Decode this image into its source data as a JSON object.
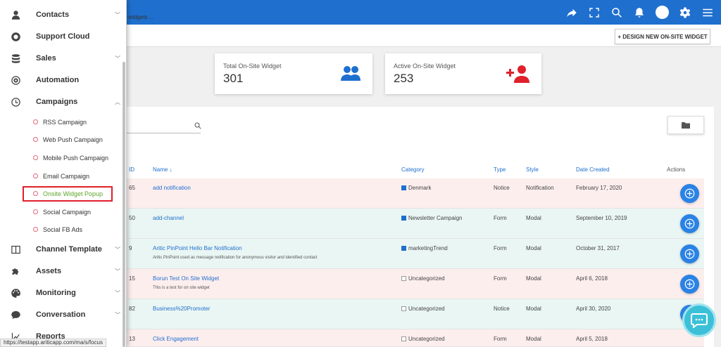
{
  "breadcrumb": "-widgets ...",
  "design_button": "+ DESIGN NEW ON-SITE WIDGET",
  "stats": [
    {
      "label": "Total On-Site Widget",
      "value": "301",
      "icon": "users-icon",
      "color": "#1f6fce"
    },
    {
      "label": "Active On-Site Widget",
      "value": "253",
      "icon": "user-plus-icon",
      "color": "#e0202a"
    }
  ],
  "table": {
    "headers": {
      "id": "ID",
      "name": "Name",
      "category": "Category",
      "type": "Type",
      "style": "Style",
      "date": "Date Created",
      "actions": "Actions"
    },
    "rows": [
      {
        "id": "65",
        "name": "add notification",
        "desc": "",
        "category": "Denmark",
        "cat_filled": true,
        "type": "Notice",
        "style": "Notification",
        "date": "February 17, 2020"
      },
      {
        "id": "50",
        "name": "add-channel",
        "desc": "",
        "category": "Newsletter Campaign",
        "cat_filled": true,
        "type": "Form",
        "style": "Modal",
        "date": "September 10, 2019"
      },
      {
        "id": "9",
        "name": "Aritic PinPoint Hello Bar Notification",
        "desc": "Aritic PinPoint used as message notification for anonymous visitor and identified contact",
        "category": "marketingTrend",
        "cat_filled": true,
        "type": "Form",
        "style": "Modal",
        "date": "October 31, 2017"
      },
      {
        "id": "15",
        "name": "Borun Test On Site Widget",
        "desc": "This is a test for on site widget",
        "category": "Uncategorized",
        "cat_filled": false,
        "type": "Form",
        "style": "Modal",
        "date": "April 6, 2018"
      },
      {
        "id": "82",
        "name": "Business%20Promoter",
        "desc": "",
        "category": "Uncategorized",
        "cat_filled": false,
        "type": "Notice",
        "style": "Modal",
        "date": "April 30, 2020"
      },
      {
        "id": "13",
        "name": "Click Engagement",
        "desc": "",
        "category": "Uncategorized",
        "cat_filled": false,
        "type": "Form",
        "style": "Modal",
        "date": "April 5, 2018"
      }
    ]
  },
  "sidebar": {
    "items": [
      {
        "label": "Contacts",
        "icon": "person-icon",
        "chevron": "chevron-down"
      },
      {
        "label": "Support Cloud",
        "icon": "lifebuoy-icon",
        "chevron": ""
      },
      {
        "label": "Sales",
        "icon": "database-icon",
        "chevron": "chevron-down"
      },
      {
        "label": "Automation",
        "icon": "target-icon",
        "chevron": ""
      },
      {
        "label": "Campaigns",
        "icon": "clock-icon",
        "chevron": "chevron-up"
      }
    ],
    "campaigns": [
      {
        "label": "RSS Campaign",
        "active": false
      },
      {
        "label": "Web Push Campaign",
        "active": false
      },
      {
        "label": "Mobile Push Campaign",
        "active": false
      },
      {
        "label": "Email Campaign",
        "active": false
      },
      {
        "label": "Onsite Widget Popup",
        "active": true
      },
      {
        "label": "Social Campaign",
        "active": false
      },
      {
        "label": "Social FB Ads",
        "active": false
      }
    ],
    "lower": [
      {
        "label": "Channel Template",
        "icon": "columns-icon",
        "chevron": "chevron-down"
      },
      {
        "label": "Assets",
        "icon": "puzzle-icon",
        "chevron": "chevron-down"
      },
      {
        "label": "Monitoring",
        "icon": "palette-icon",
        "chevron": "chevron-down"
      },
      {
        "label": "Conversation",
        "icon": "chat-bubble-icon",
        "chevron": "chevron-down"
      },
      {
        "label": "Reports",
        "icon": "chart-icon",
        "chevron": ""
      }
    ]
  },
  "status_url": "https://testapp.ariticapp.com/ma/s/focus"
}
